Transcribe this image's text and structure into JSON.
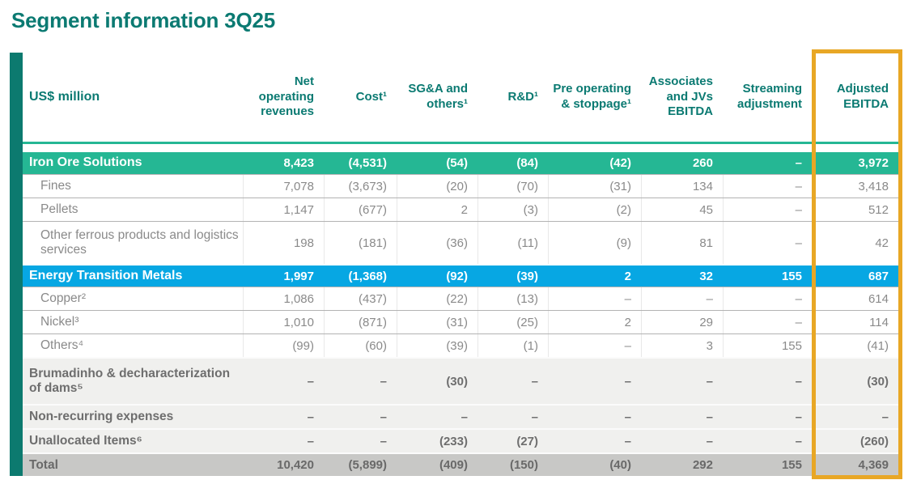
{
  "title": "Segment information 3Q25",
  "colors": {
    "brand_teal_dark": "#0B7A72",
    "accent_bar": "#0C7A6F",
    "row_teal": "#25B794",
    "row_blue": "#07A7E3",
    "gold_highlight": "#E8A725",
    "row_gray_light": "#F0F0EE",
    "row_gray_total": "#C8C8C6"
  },
  "table": {
    "unit_label": "US$ million",
    "columns": [
      "Net operating revenues",
      "Cost¹",
      "SG&A and others¹",
      "R&D¹",
      "Pre operating & stoppage¹",
      "Associates and JVs EBITDA",
      "Streaming adjustment",
      "Adjusted EBITDA"
    ],
    "highlighted_column": "Adjusted EBITDA",
    "rows": [
      {
        "label": "Iron Ore Solutions",
        "style": "section-teal",
        "values": [
          "8,423",
          "(4,531)",
          "(54)",
          "(84)",
          "(42)",
          "260",
          "–",
          "3,972"
        ]
      },
      {
        "label": "Fines",
        "style": "sub",
        "values": [
          "7,078",
          "(3,673)",
          "(20)",
          "(70)",
          "(31)",
          "134",
          "–",
          "3,418"
        ]
      },
      {
        "label": "Pellets",
        "style": "sub",
        "values": [
          "1,147",
          "(677)",
          "2",
          "(3)",
          "(2)",
          "45",
          "–",
          "512"
        ]
      },
      {
        "label": "Other ferrous products and logistics services",
        "style": "sub-tall",
        "values": [
          "198",
          "(181)",
          "(36)",
          "(11)",
          "(9)",
          "81",
          "–",
          "42"
        ]
      },
      {
        "label": "Energy Transition Metals",
        "style": "section-blue",
        "values": [
          "1,997",
          "(1,368)",
          "(92)",
          "(39)",
          "2",
          "32",
          "155",
          "687"
        ]
      },
      {
        "label": "Copper²",
        "style": "sub",
        "values": [
          "1,086",
          "(437)",
          "(22)",
          "(13)",
          "–",
          "–",
          "–",
          "614"
        ]
      },
      {
        "label": "Nickel³",
        "style": "sub",
        "values": [
          "1,010",
          "(871)",
          "(31)",
          "(25)",
          "2",
          "29",
          "–",
          "114"
        ]
      },
      {
        "label": "Others⁴",
        "style": "sub",
        "values": [
          "(99)",
          "(60)",
          "(39)",
          "(1)",
          "–",
          "3",
          "155",
          "(41)"
        ]
      },
      {
        "label": "Brumadinho & decharacterization of dams⁵",
        "style": "gray-tall",
        "values": [
          "–",
          "–",
          "(30)",
          "–",
          "–",
          "–",
          "–",
          "(30)"
        ]
      },
      {
        "label": "Non-recurring expenses",
        "style": "gray",
        "values": [
          "–",
          "–",
          "–",
          "–",
          "–",
          "–",
          "–",
          "–"
        ]
      },
      {
        "label": "Unallocated Items⁶",
        "style": "gray",
        "values": [
          "–",
          "–",
          "(233)",
          "(27)",
          "–",
          "–",
          "–",
          "(260)"
        ]
      },
      {
        "label": "Total",
        "style": "total",
        "values": [
          "10,420",
          "(5,899)",
          "(409)",
          "(150)",
          "(40)",
          "292",
          "155",
          "4,369"
        ]
      }
    ]
  }
}
